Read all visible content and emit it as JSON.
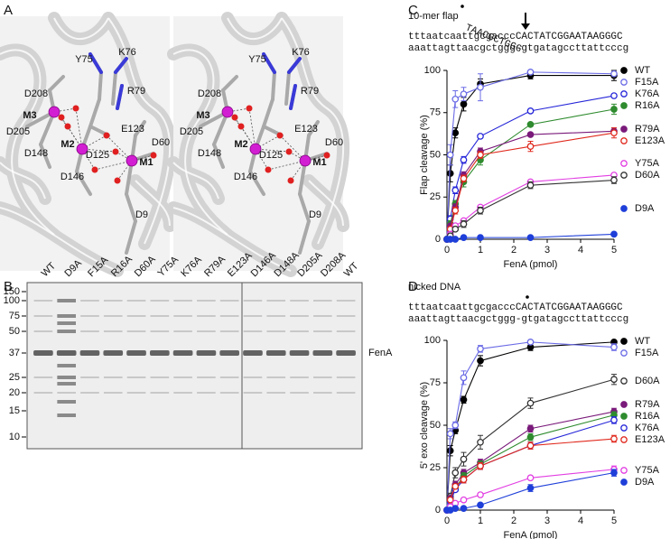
{
  "panel_labels": [
    "A",
    "B",
    "C",
    "D"
  ],
  "structure": {
    "labels": [
      "D208",
      "Y75",
      "K76",
      "R79",
      "M3",
      "D205",
      "M2",
      "E123",
      "D60",
      "D148",
      "D125",
      "M1",
      "D146",
      "D9"
    ]
  },
  "gel": {
    "lanes": [
      "WT",
      "D9A",
      "F15A",
      "R16A",
      "D60A",
      "Y75A",
      "K76A",
      "R79A",
      "E123A",
      "D146A",
      "D148A",
      "D205A",
      "D208A",
      "WT"
    ],
    "markers": [
      150,
      100,
      75,
      50,
      37,
      25,
      20,
      15,
      10
    ],
    "band_label": "FenA"
  },
  "chart_data": [
    {
      "type": "line",
      "title": "10-mer flap",
      "flap": "TAACGCTGGG",
      "top_strand": "tttaatcaattgcgacccCACTATCGGAATAAGGGC",
      "bottom_strand": "aaattagttaacgctggg-gtgatagccttattcccg",
      "x_label": "FenA (pmol)",
      "y_label": "Flap cleavage (%)",
      "x": [
        0,
        0.1,
        0.25,
        0.5,
        1,
        2.5,
        5
      ],
      "xlim": [
        0,
        5
      ],
      "xticks": [
        0,
        1,
        2,
        3,
        4,
        5
      ],
      "ylim": [
        0,
        100
      ],
      "yticks": [
        0,
        25,
        50,
        75,
        100
      ],
      "series": [
        {
          "name": "WT",
          "color": "#000000",
          "filled": true,
          "values": [
            0,
            39,
            63,
            80,
            92,
            97,
            97
          ],
          "errors": [
            0,
            5,
            3,
            4,
            3,
            2,
            3
          ]
        },
        {
          "name": "F15A",
          "color": "#6b6be6",
          "filled": false,
          "values": [
            0,
            50,
            83,
            86,
            90,
            99,
            98
          ],
          "errors": [
            0,
            6,
            5,
            4,
            8,
            1,
            1
          ]
        },
        {
          "name": "K76A",
          "color": "#2626d9",
          "filled": false,
          "values": [
            0,
            12,
            29,
            47,
            61,
            76,
            85
          ],
          "errors": [
            0,
            2,
            2,
            2,
            1,
            1,
            1
          ]
        },
        {
          "name": "R16A",
          "color": "#2e8b2e",
          "filled": true,
          "values": [
            0,
            9,
            21,
            34,
            47,
            68,
            77
          ],
          "errors": [
            0,
            2,
            2,
            3,
            3,
            1,
            3
          ]
        },
        {
          "name": "R79A",
          "color": "#7a1a7a",
          "filled": true,
          "values": [
            0,
            8,
            19,
            38,
            52,
            62,
            64
          ],
          "errors": [
            0,
            1,
            2,
            2,
            2,
            1,
            2
          ]
        },
        {
          "name": "E123A",
          "color": "#e0291d",
          "filled": false,
          "values": [
            0,
            6,
            17,
            36,
            50,
            55,
            63
          ],
          "errors": [
            0,
            1,
            2,
            2,
            2,
            3,
            3
          ]
        },
        {
          "name": "Y75A",
          "color": "#e23ee2",
          "filled": false,
          "values": [
            0,
            3,
            8,
            11,
            19,
            34,
            38
          ],
          "errors": [
            0,
            1,
            1,
            1,
            1,
            1,
            1
          ]
        },
        {
          "name": "D60A",
          "color": "#333333",
          "filled": false,
          "values": [
            0,
            2,
            6,
            9,
            17,
            32,
            35
          ],
          "errors": [
            0,
            1,
            1,
            2,
            2,
            2,
            2
          ]
        },
        {
          "name": "D9A",
          "color": "#1f3fd9",
          "filled": true,
          "values": [
            0,
            0,
            0,
            1,
            1,
            1,
            3
          ],
          "errors": [
            0,
            0,
            0,
            0,
            0,
            0,
            1
          ]
        }
      ]
    },
    {
      "type": "line",
      "title": "nicked DNA",
      "top_strand": "tttaatcaattgcgacccCACTATCGGAATAAGGGC",
      "bottom_strand": "aaattagttaacgctggg-gtgatagccttattcccg",
      "x_label": "FenA (pmol)",
      "y_label": "5' exo cleavage (%)",
      "x": [
        0,
        0.1,
        0.25,
        0.5,
        1,
        2.5,
        5
      ],
      "xlim": [
        0,
        5
      ],
      "xticks": [
        0,
        1,
        2,
        3,
        4,
        5
      ],
      "ylim": [
        0,
        100
      ],
      "yticks": [
        0,
        25,
        50,
        75,
        100
      ],
      "series": [
        {
          "name": "WT",
          "color": "#000000",
          "filled": true,
          "values": [
            0,
            35,
            47,
            65,
            88,
            96,
            99
          ],
          "errors": [
            0,
            3,
            2,
            2,
            3,
            2,
            1
          ]
        },
        {
          "name": "F15A",
          "color": "#6b6be6",
          "filled": false,
          "values": [
            0,
            45,
            50,
            78,
            95,
            99,
            96
          ],
          "errors": [
            0,
            3,
            2,
            4,
            2,
            1,
            2
          ]
        },
        {
          "name": "D60A",
          "color": "#333333",
          "filled": false,
          "values": [
            0,
            8,
            22,
            30,
            40,
            63,
            77
          ],
          "errors": [
            0,
            2,
            3,
            4,
            4,
            3,
            3
          ]
        },
        {
          "name": "R79A",
          "color": "#7a1a7a",
          "filled": true,
          "values": [
            0,
            7,
            15,
            22,
            28,
            48,
            58
          ],
          "errors": [
            0,
            1,
            2,
            2,
            2,
            2,
            2
          ]
        },
        {
          "name": "R16A",
          "color": "#2e8b2e",
          "filled": true,
          "values": [
            0,
            6,
            13,
            20,
            27,
            43,
            56
          ],
          "errors": [
            0,
            1,
            2,
            2,
            2,
            2,
            2
          ]
        },
        {
          "name": "K76A",
          "color": "#2626d9",
          "filled": false,
          "values": [
            0,
            5,
            12,
            18,
            26,
            38,
            53
          ],
          "errors": [
            0,
            1,
            1,
            2,
            2,
            2,
            2
          ]
        },
        {
          "name": "E123A",
          "color": "#e0291d",
          "filled": false,
          "values": [
            0,
            6,
            14,
            18,
            26,
            38,
            42
          ],
          "errors": [
            0,
            1,
            1,
            2,
            2,
            2,
            2
          ]
        },
        {
          "name": "Y75A",
          "color": "#e23ee2",
          "filled": false,
          "values": [
            0,
            2,
            4,
            6,
            9,
            19,
            24
          ],
          "errors": [
            0,
            1,
            1,
            1,
            1,
            1,
            2
          ]
        },
        {
          "name": "D9A",
          "color": "#1f3fd9",
          "filled": true,
          "values": [
            0,
            0,
            1,
            1,
            3,
            13,
            22
          ],
          "errors": [
            0,
            0,
            0,
            0,
            1,
            2,
            2
          ]
        }
      ]
    }
  ]
}
